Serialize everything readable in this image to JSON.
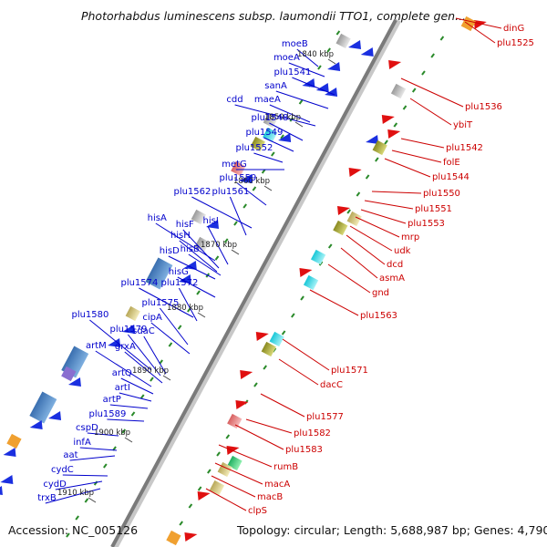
{
  "title": "Photorhabdus luminescens subsp. laumondii TTO1, complete gen...",
  "accession": "Accession: NC_005126",
  "topology": "Topology: circular; Length: 5,688,987 bp; Genes: 4,790",
  "colors": {
    "left_label": "#0000cc",
    "right_label": "#cc0000",
    "backbone": "#8a8a8a",
    "forward_gene": "#1a2fe0",
    "reverse_gene": "#e01010",
    "rna_tick": "#2a8a2a"
  },
  "kbp_ticks": [
    "1840 kbp",
    "1850 kbp",
    "1860 kbp",
    "1870 kbp",
    "1880 kbp",
    "1890 kbp",
    "1900 kbp",
    "1910 kbp"
  ],
  "left_genes": [
    "moeB",
    "moeA",
    "plu1541",
    "sanA",
    "cdd",
    "maeA",
    "plu1548",
    "plu1549",
    "plu1552",
    "metG",
    "plu1559",
    "plu1562",
    "plu1561",
    "hisA",
    "hisF",
    "hisI",
    "hisH",
    "hisD",
    "hisB",
    "hisG",
    "plu1574",
    "plu1572",
    "plu1575",
    "cipA",
    "plu1580",
    "plu1579",
    "sdaC",
    "artM",
    "grxA",
    "artQ",
    "artI",
    "artP",
    "plu1589",
    "cspD",
    "infA",
    "aat",
    "cydC",
    "cydD",
    "trxB"
  ],
  "right_genes": [
    "dinG",
    "plu1525",
    "plu1536",
    "ybiT",
    "plu1542",
    "folE",
    "plu1544",
    "plu1550",
    "plu1551",
    "plu1553",
    "mrp",
    "udk",
    "dcd",
    "asmA",
    "gnd",
    "plu1563",
    "plu1571",
    "dacC",
    "plu1577",
    "plu1582",
    "plu1583",
    "rumB",
    "macA",
    "macB",
    "clpS"
  ]
}
